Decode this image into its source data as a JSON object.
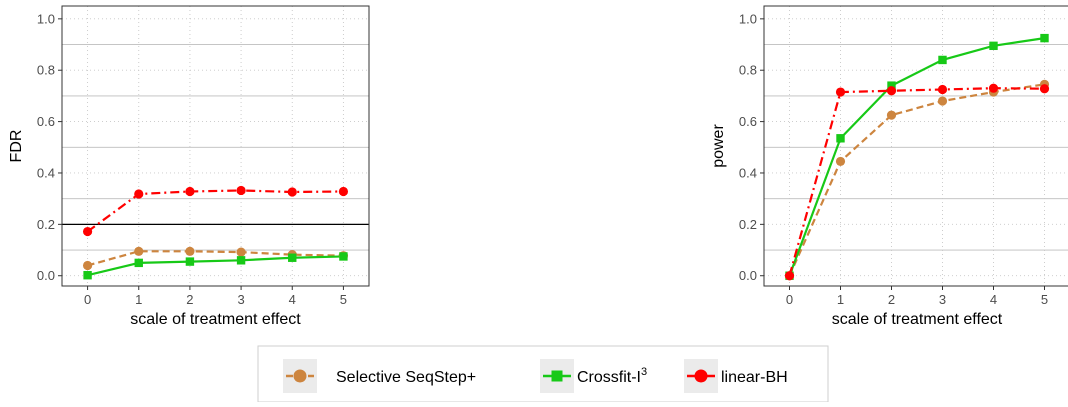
{
  "chart_data": [
    {
      "type": "line",
      "xlabel": "scale of treatment effect",
      "ylabel": "FDR",
      "x": [
        0,
        1,
        2,
        3,
        4,
        5
      ],
      "xlim": [
        -0.5,
        5.5
      ],
      "ylim": [
        -0.04,
        1.05
      ],
      "xticks": [
        "0",
        "1",
        "2",
        "3",
        "4",
        "5"
      ],
      "yticks": [
        "0.0",
        "0.2",
        "0.4",
        "0.6",
        "0.8",
        "1.0"
      ],
      "reference_line": 0.2,
      "grid": true,
      "series": [
        {
          "name": "Selective SeqStep+",
          "values": [
            0.04,
            0.095,
            0.095,
            0.092,
            0.082,
            0.078
          ]
        },
        {
          "name": "Crossfit-I3",
          "values": [
            0.002,
            0.05,
            0.055,
            0.06,
            0.07,
            0.075
          ]
        },
        {
          "name": "linear-BH",
          "values": [
            0.172,
            0.318,
            0.328,
            0.332,
            0.326,
            0.328
          ]
        }
      ]
    },
    {
      "type": "line",
      "xlabel": "scale of treatment effect",
      "ylabel": "power",
      "x": [
        0,
        1,
        2,
        3,
        4,
        5
      ],
      "xlim": [
        -0.5,
        5.5
      ],
      "ylim": [
        -0.04,
        1.05
      ],
      "xticks": [
        "0",
        "1",
        "2",
        "3",
        "4",
        "5"
      ],
      "yticks": [
        "0.0",
        "0.2",
        "0.4",
        "0.6",
        "0.8",
        "1.0"
      ],
      "grid": true,
      "series": [
        {
          "name": "Selective SeqStep+",
          "values": [
            0.0,
            0.445,
            0.625,
            0.68,
            0.715,
            0.745
          ]
        },
        {
          "name": "Crossfit-I3",
          "values": [
            0.0,
            0.535,
            0.74,
            0.84,
            0.895,
            0.925
          ]
        },
        {
          "name": "linear-BH",
          "values": [
            0.0,
            0.715,
            0.72,
            0.725,
            0.73,
            0.728
          ]
        }
      ]
    }
  ],
  "legend": {
    "placement": "bottom",
    "entries": [
      {
        "label": "Selective SeqStep+",
        "color": "#cd853f",
        "marker": "circle",
        "dash": "dashed"
      },
      {
        "label": "Crossfit-I",
        "superscript": "3",
        "color": "#17c917",
        "marker": "square",
        "dash": "solid"
      },
      {
        "label": "linear-BH",
        "color": "#ff0000",
        "marker": "circle",
        "dash": "dashdot"
      }
    ]
  }
}
